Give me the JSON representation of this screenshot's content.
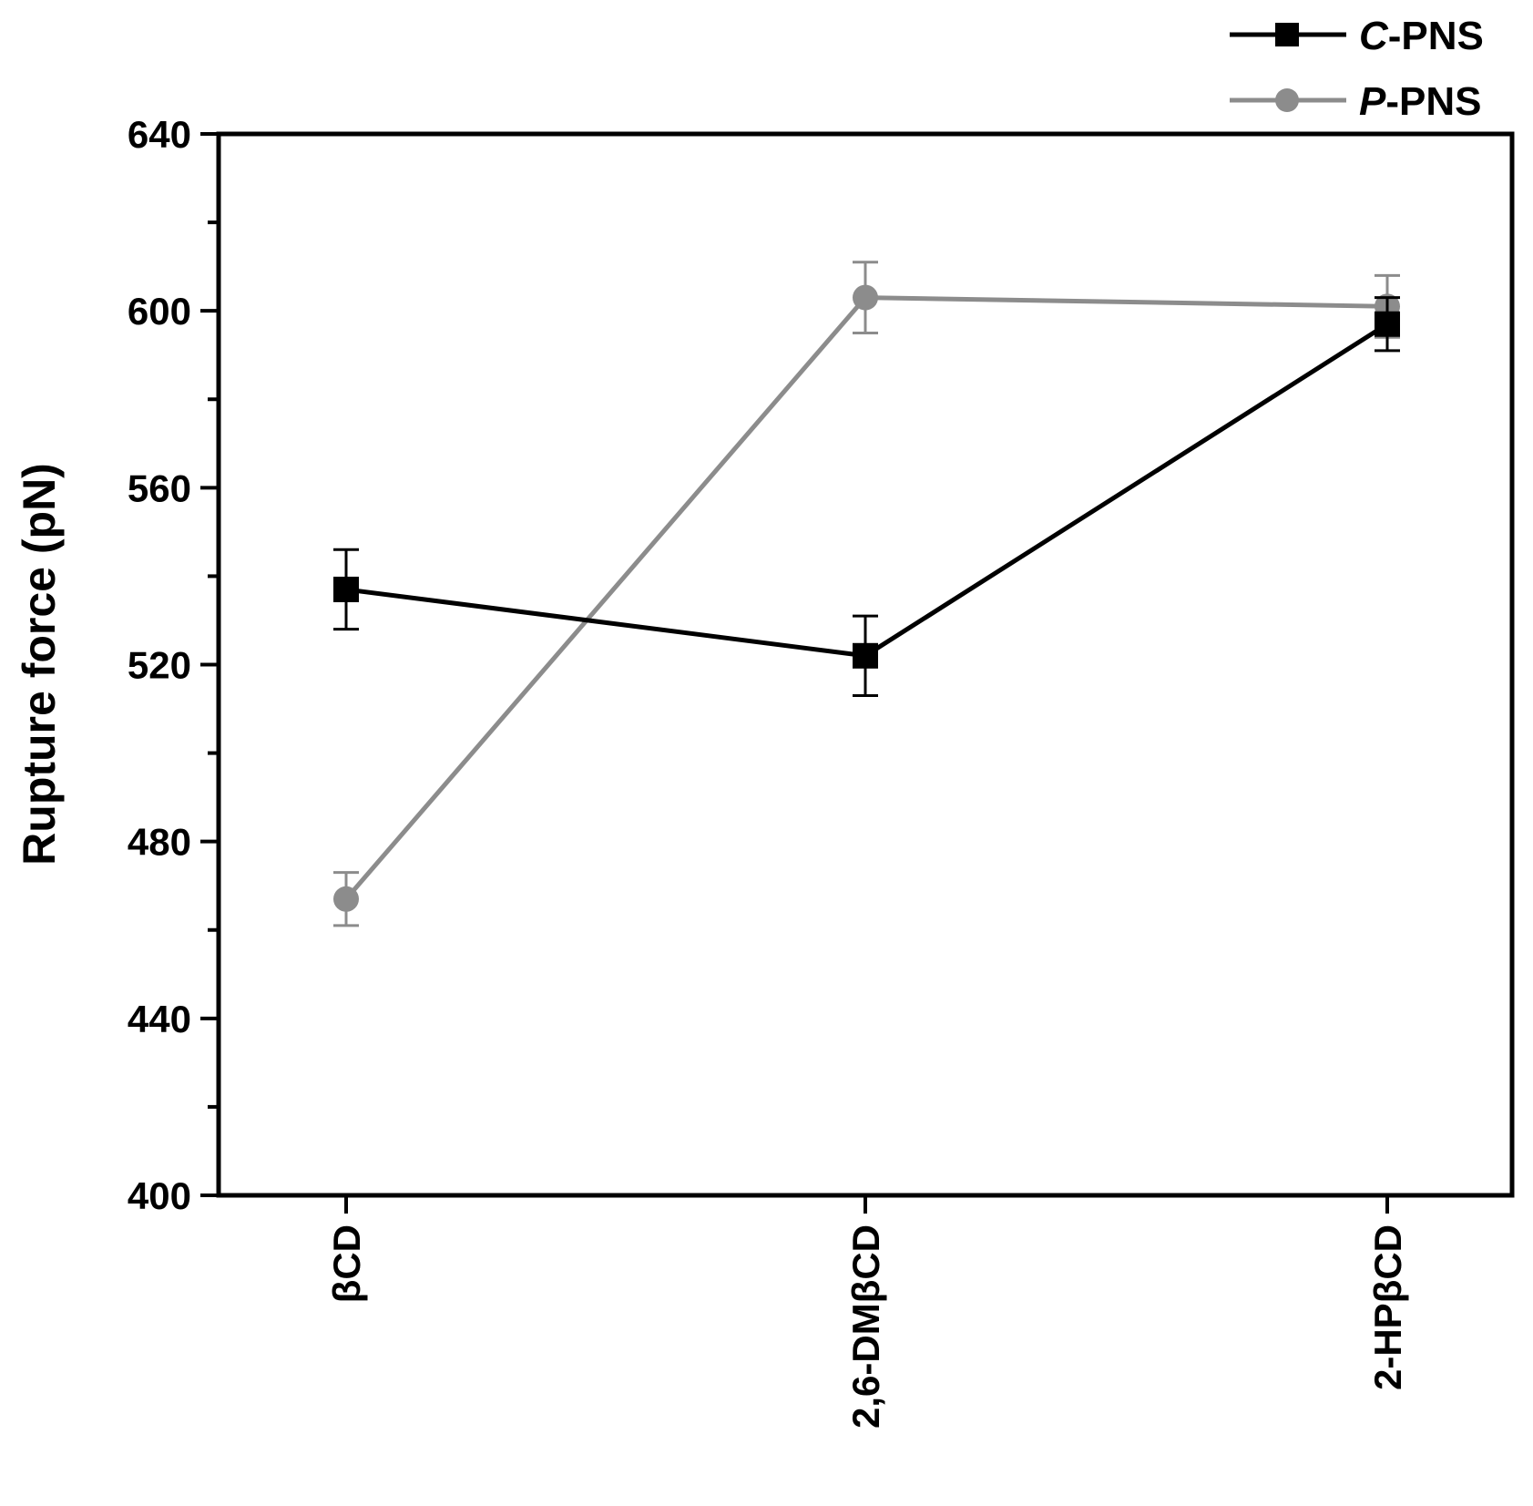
{
  "chart_data": {
    "type": "line",
    "ylabel": "Rupture force (pN)",
    "xlabel": "",
    "categories": [
      "βCD",
      "2,6-DMβCD",
      "2-HPβCD"
    ],
    "ylim": [
      400,
      640
    ],
    "yticks": [
      400,
      440,
      480,
      520,
      560,
      600,
      640
    ],
    "legend_position": "top-right, outside plot",
    "grid": false,
    "series": [
      {
        "name_prefix": "C",
        "name_suffix": "-PNS",
        "color": "#000000",
        "marker": "square",
        "values": [
          537,
          522,
          597
        ],
        "errors": [
          9,
          9,
          6
        ]
      },
      {
        "name_prefix": "P",
        "name_suffix": "-PNS",
        "color": "#8c8c8c",
        "marker": "circle",
        "values": [
          467,
          603,
          601
        ],
        "errors": [
          6,
          8,
          7
        ]
      }
    ]
  }
}
